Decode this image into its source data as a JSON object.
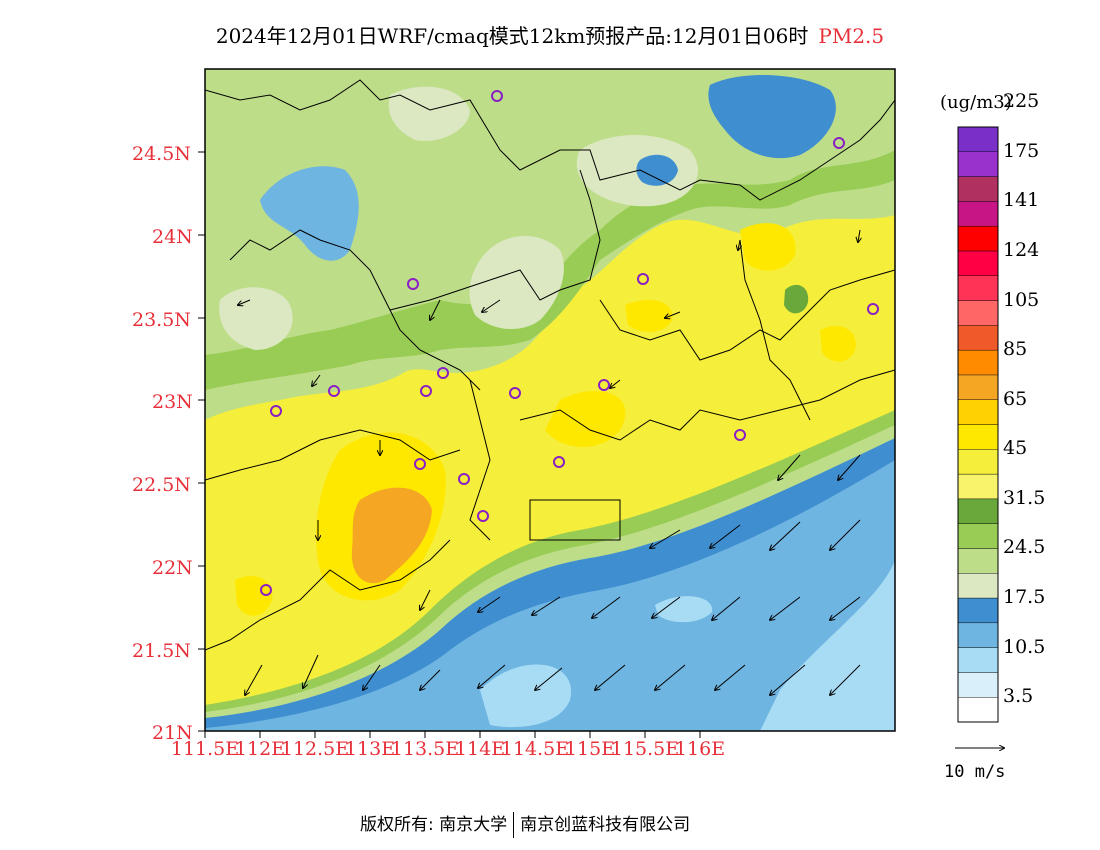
{
  "title": {
    "main": "2024年12月01日WRF/cmaq模式12km预报产品:12月01日06时",
    "pollutant": "PM2.5",
    "pollutant_color": "#e8303a"
  },
  "map": {
    "lat_ticks": [
      "24.5N",
      "24N",
      "23.5N",
      "23N",
      "22.5N",
      "22N",
      "21.5N",
      "21N"
    ],
    "lon_ticks": [
      "111.5E",
      "112E",
      "112.5E",
      "113E",
      "113.5E",
      "114E",
      "114.5E",
      "115E",
      "115.5E",
      "116E"
    ],
    "tick_color": "#e8303a",
    "cities_marker_color": "#8a1fc4"
  },
  "colorbar": {
    "unit": "(ug/m3)",
    "colors": [
      "#ffffff",
      "#d9f0fb",
      "#a8dcf5",
      "#6fb5e2",
      "#3f8fd0",
      "#dbe8c1",
      "#bddd89",
      "#99cc55",
      "#6aa83b",
      "#f7f36a",
      "#f5ee3a",
      "#ffe800",
      "#ffd200",
      "#f5a623",
      "#ff8c00",
      "#f05a28",
      "#ff6666",
      "#ff3355",
      "#ff0044",
      "#ff0000",
      "#c71585",
      "#b03060",
      "#9932cc",
      "#7b2fc9"
    ],
    "labels": [
      "3.5",
      "10.5",
      "17.5",
      "24.5",
      "31.5",
      "45",
      "65",
      "85",
      "105",
      "124",
      "141",
      "175",
      "225"
    ]
  },
  "wind_reference": "10 m/s",
  "footer": {
    "left": "版权所有: 南京大学",
    "right": "南京创蓝科技有限公司"
  }
}
